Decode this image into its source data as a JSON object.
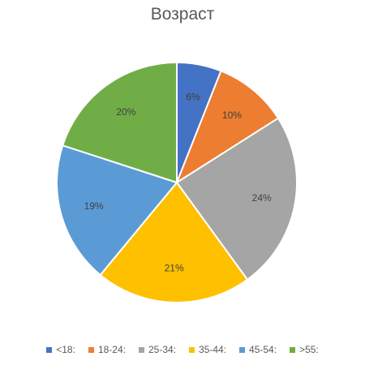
{
  "chart_data": {
    "type": "pie",
    "title": "Возраст",
    "categories": [
      "<18:",
      "18-24:",
      "25-34:",
      "35-44:",
      "45-54:",
      ">55:"
    ],
    "values": [
      6,
      10,
      24,
      21,
      19,
      20
    ],
    "labels": [
      "6%",
      "10%",
      "24%",
      "21%",
      "19%",
      "20%"
    ],
    "colors": [
      "#4472c4",
      "#ed7d31",
      "#a5a5a5",
      "#ffc000",
      "#5b9bd5",
      "#70ad47"
    ],
    "start": "12 o'clock",
    "direction": "clockwise",
    "legend": "bottom"
  }
}
